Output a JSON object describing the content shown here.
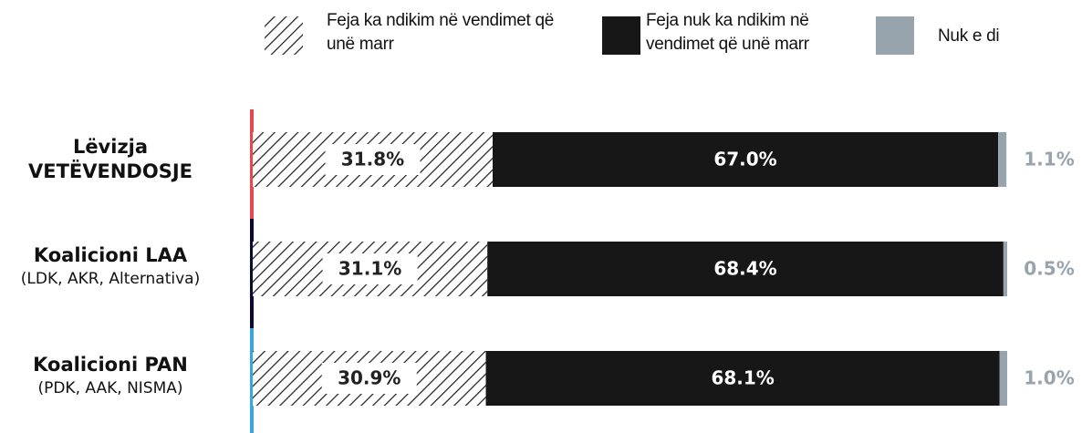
{
  "chart_data": {
    "type": "stacked-bar-horizontal",
    "categories": [
      "Lëvizja VETËVENDOSJE",
      "Koalicioni LAA",
      "Koalicioni PAN"
    ],
    "category_notes": [
      null,
      "(LDK, AKR, Alternativa)",
      "(PDK, AAK, NISMA)"
    ],
    "category_colors": [
      "#e8474c",
      "#0b0b30",
      "#3aa7dc"
    ],
    "xlim": [
      0,
      100
    ],
    "series": [
      {
        "name": "Feja ka ndikim në vendimet që unë marr",
        "color": "hatch",
        "values": [
          31.8,
          31.1,
          30.9
        ],
        "value_labels": [
          "31.8%",
          "31.1%",
          "30.9%"
        ]
      },
      {
        "name": "Feja nuk ka ndikim në vendimet që unë marr",
        "color": "#171717",
        "values": [
          67.0,
          68.4,
          68.1
        ],
        "value_labels": [
          "67.0%",
          "68.4%",
          "68.1%"
        ]
      },
      {
        "name": "Nuk e di",
        "color": "#97a3ad",
        "values": [
          1.1,
          0.5,
          1.0
        ],
        "value_labels": [
          "1.1%",
          "0.5%",
          "1.0%"
        ]
      }
    ]
  }
}
